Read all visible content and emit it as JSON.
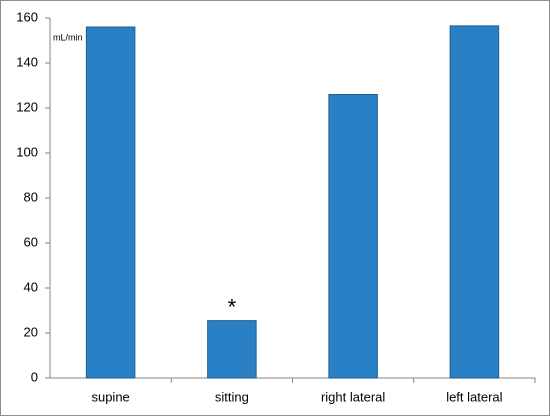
{
  "chart_data": {
    "type": "bar",
    "y_unit": "mL/min",
    "annotation": "*",
    "categories": [
      "supine",
      "sitting",
      "right lateral",
      "left lateral"
    ],
    "values": [
      156,
      25.5,
      126,
      156.5
    ],
    "color": "#2a80c4",
    "ylim": [
      0,
      160
    ],
    "yticks": [
      0,
      20,
      40,
      60,
      80,
      100,
      120,
      140,
      160
    ],
    "grid": false
  }
}
